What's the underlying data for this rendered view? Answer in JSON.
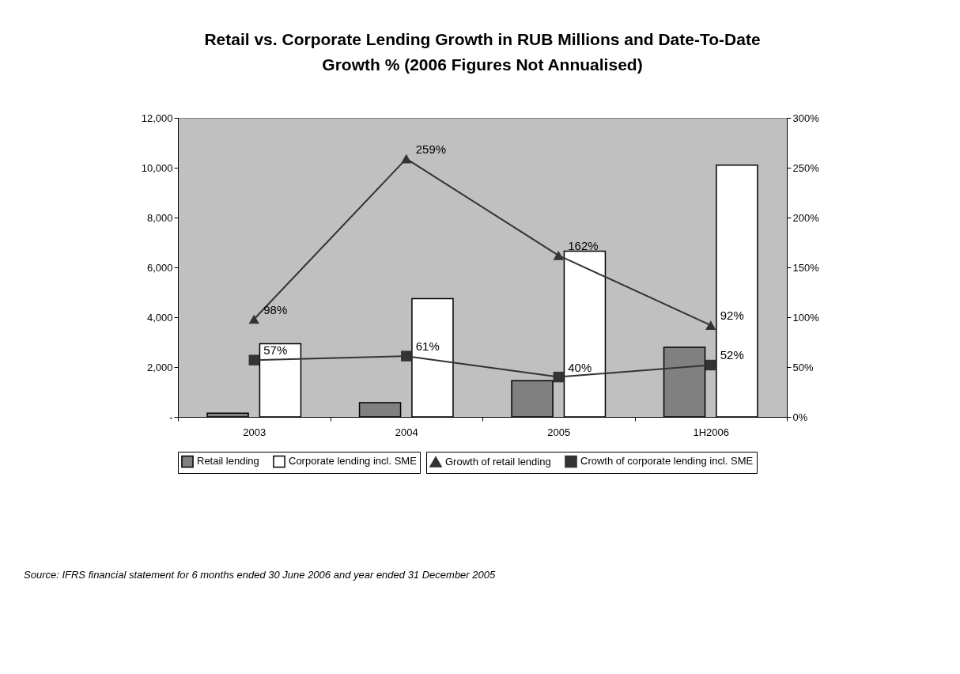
{
  "chart_data": {
    "type": "bar",
    "title": "Retail vs. Corporate Lending Growth in RUB Millions and Date-To-Date Growth % (2006 Figures Not Annualised)",
    "categories": [
      "2003",
      "2004",
      "2005",
      "1H2006"
    ],
    "series": [
      {
        "name": "Retail lending",
        "color": "#808080",
        "values": [
          150,
          570,
          1450,
          2790
        ]
      },
      {
        "name": "Corporate lending incl. SME",
        "color": "#ffffff",
        "values": [
          2940,
          4750,
          6650,
          10100
        ]
      },
      {
        "name": "Growth of retail lending",
        "type": "line",
        "axis": "y2",
        "marker": "triangle",
        "color": "#333333",
        "values": [
          98,
          259,
          162,
          92
        ],
        "value_labels": [
          "98%",
          "259%",
          "162%",
          "92%"
        ]
      },
      {
        "name": "Crowth of corporate lending incl. SME",
        "type": "line",
        "axis": "y2",
        "marker": "square",
        "color": "#333333",
        "values": [
          57,
          61,
          40,
          52
        ],
        "value_labels": [
          "57%",
          "61%",
          "40%",
          "52%"
        ]
      }
    ],
    "ylim": [
      0,
      12000
    ],
    "yticks": [
      {
        "value": 0,
        "label": "-"
      },
      {
        "value": 2000,
        "label": "2,000"
      },
      {
        "value": 4000,
        "label": "4,000"
      },
      {
        "value": 6000,
        "label": "6,000"
      },
      {
        "value": 8000,
        "label": "8,000"
      },
      {
        "value": 10000,
        "label": "10,000"
      },
      {
        "value": 12000,
        "label": "12,000"
      }
    ],
    "y2lim": [
      0,
      300
    ],
    "y2ticks": [
      {
        "value": 0,
        "label": "0%"
      },
      {
        "value": 50,
        "label": "50%"
      },
      {
        "value": 100,
        "label": "100%"
      },
      {
        "value": 150,
        "label": "150%"
      },
      {
        "value": 200,
        "label": "200%"
      },
      {
        "value": 250,
        "label": "250%"
      },
      {
        "value": 300,
        "label": "300%"
      }
    ],
    "grid": false,
    "legend": "bottom",
    "annotations": [
      "Source: IFRS financial statement for 6 months ended 30 June 2006 and year ended 31 December 2005"
    ]
  }
}
